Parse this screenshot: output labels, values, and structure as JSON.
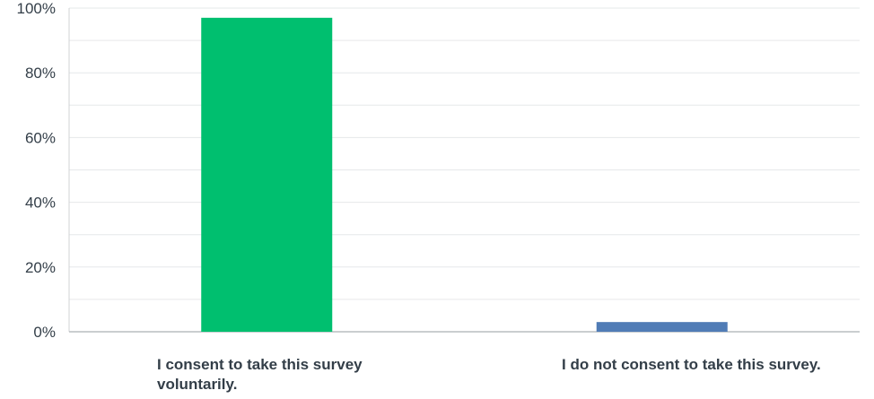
{
  "chart_data": {
    "type": "bar",
    "categories": [
      "I consent to take this survey voluntarily.",
      "I do not consent to take this survey."
    ],
    "values": [
      97.0,
      3.0
    ],
    "colors": [
      "#00bf6f",
      "#507cb6"
    ],
    "ylim": [
      0,
      100
    ],
    "yticks": [
      "0%",
      "20%",
      "40%",
      "60%",
      "80%",
      "100%"
    ],
    "grid": true
  }
}
